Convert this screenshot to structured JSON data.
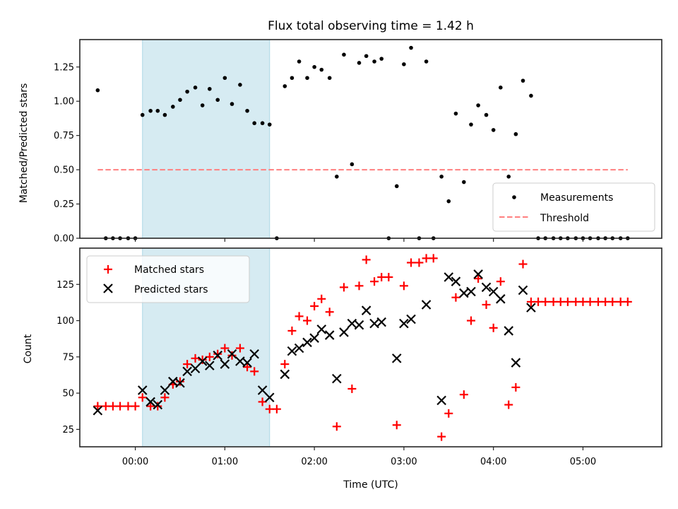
{
  "chart_data": [
    {
      "type": "scatter",
      "panel": "top",
      "title": "Flux total observing time = 1.42 h",
      "xlabel": "",
      "ylabel": "Matched/Predicted stars",
      "xlim": [
        -0.62,
        5.88
      ],
      "ylim": [
        0.0,
        1.45
      ],
      "yticks": [
        0.0,
        0.25,
        0.5,
        0.75,
        1.0,
        1.25
      ],
      "ytick_labels": [
        "0.00",
        "0.25",
        "0.50",
        "0.75",
        "1.00",
        "1.25"
      ],
      "xticks": [
        0,
        1,
        2,
        3,
        4,
        5
      ],
      "grid": false,
      "legend": {
        "placement": "lower-right",
        "entries": [
          "Measurements",
          "Threshold"
        ]
      },
      "shaded_interval_hours": [
        0.08,
        1.5
      ],
      "shaded_color": "#add8e6",
      "threshold": {
        "name": "Threshold",
        "value": 0.5,
        "x_range": [
          -0.42,
          5.5
        ],
        "color": "#ff7f7f",
        "style": "dashed"
      },
      "series": [
        {
          "name": "Measurements",
          "color": "#000000",
          "marker": "dot",
          "x": [
            -0.42,
            -0.33,
            -0.25,
            -0.17,
            -0.08,
            0.0,
            0.08,
            0.17,
            0.25,
            0.33,
            0.42,
            0.5,
            0.58,
            0.67,
            0.75,
            0.83,
            0.92,
            1.0,
            1.08,
            1.17,
            1.25,
            1.33,
            1.42,
            1.5,
            1.58,
            1.67,
            1.75,
            1.83,
            1.92,
            2.0,
            2.08,
            2.17,
            2.25,
            2.33,
            2.42,
            2.5,
            2.58,
            2.67,
            2.75,
            2.83,
            2.92,
            3.0,
            3.08,
            3.17,
            3.25,
            3.33,
            3.42,
            3.5,
            3.58,
            3.67,
            3.75,
            3.83,
            3.92,
            4.0,
            4.08,
            4.17,
            4.25,
            4.33,
            4.42,
            4.5,
            4.58,
            4.67,
            4.75,
            4.83,
            4.92,
            5.0,
            5.08,
            5.17,
            5.25,
            5.33,
            5.42,
            5.5
          ],
          "y": [
            1.08,
            0,
            0,
            0,
            0,
            0,
            0.9,
            0.93,
            0.93,
            0.9,
            0.96,
            1.01,
            1.07,
            1.1,
            0.97,
            1.09,
            1.01,
            1.17,
            0.98,
            1.12,
            0.93,
            0.84,
            0.84,
            0.83,
            0,
            1.11,
            1.17,
            1.29,
            1.17,
            1.25,
            1.23,
            1.17,
            0.45,
            1.34,
            0.54,
            1.28,
            1.33,
            1.29,
            1.31,
            0,
            0.38,
            1.27,
            1.39,
            0,
            1.29,
            0,
            0.45,
            0.27,
            0.91,
            0.41,
            0.83,
            0.97,
            0.9,
            0.79,
            1.1,
            0.45,
            0.76,
            1.15,
            1.04,
            0,
            0,
            0,
            0,
            0,
            0,
            0,
            0,
            0,
            0,
            0,
            0,
            0
          ]
        }
      ]
    },
    {
      "type": "scatter",
      "panel": "bottom",
      "title": "",
      "xlabel": "Time (UTC)",
      "ylabel": "Count",
      "xlim": [
        -0.62,
        5.88
      ],
      "ylim": [
        13,
        150
      ],
      "yticks": [
        25,
        50,
        75,
        100,
        125
      ],
      "ytick_labels": [
        "25",
        "50",
        "75",
        "100",
        "125"
      ],
      "xticks": [
        0,
        1,
        2,
        3,
        4,
        5
      ],
      "xtick_labels": [
        "00:00",
        "01:00",
        "02:00",
        "03:00",
        "04:00",
        "05:00"
      ],
      "grid": false,
      "legend": {
        "placement": "upper-left",
        "entries": [
          "Matched stars",
          "Predicted stars"
        ]
      },
      "shaded_interval_hours": [
        0.08,
        1.5
      ],
      "shaded_color": "#add8e6",
      "series": [
        {
          "name": "Matched stars",
          "color": "#ff0000",
          "marker": "plus",
          "x": [
            -0.42,
            -0.33,
            -0.25,
            -0.17,
            -0.08,
            0.0,
            0.08,
            0.17,
            0.25,
            0.33,
            0.42,
            0.5,
            0.58,
            0.67,
            0.75,
            0.83,
            0.92,
            1.0,
            1.08,
            1.17,
            1.25,
            1.33,
            1.42,
            1.5,
            1.58,
            1.67,
            1.75,
            1.83,
            1.92,
            2.0,
            2.08,
            2.17,
            2.25,
            2.33,
            2.42,
            2.5,
            2.58,
            2.67,
            2.75,
            2.83,
            2.92,
            3.0,
            3.08,
            3.17,
            3.25,
            3.33,
            3.42,
            3.5,
            3.58,
            3.67,
            3.75,
            3.83,
            3.92,
            4.0,
            4.08,
            4.17,
            4.25,
            4.33,
            4.42,
            4.5,
            4.58,
            4.67,
            4.75,
            4.83,
            4.92,
            5.0,
            5.08,
            5.17,
            5.25,
            5.33,
            5.42,
            5.5
          ],
          "y": [
            41,
            41,
            41,
            41,
            41,
            41,
            47,
            41,
            41,
            47,
            56,
            58,
            70,
            74,
            73,
            75,
            77,
            81,
            76,
            81,
            68,
            65,
            44,
            39,
            39,
            70,
            93,
            103,
            100,
            110,
            115,
            106,
            27,
            123,
            53,
            124,
            142,
            127,
            130,
            130,
            28,
            124,
            140,
            140,
            143,
            143,
            20,
            36,
            116,
            49,
            100,
            129,
            111,
            95,
            127,
            42,
            54,
            139,
            113,
            113,
            113,
            113,
            113,
            113,
            113,
            113,
            113,
            113,
            113,
            113,
            113,
            113
          ]
        },
        {
          "name": "Predicted stars",
          "color": "#000000",
          "marker": "x",
          "x": [
            -0.42,
            0.08,
            0.17,
            0.25,
            0.33,
            0.42,
            0.5,
            0.58,
            0.67,
            0.75,
            0.83,
            0.92,
            1.0,
            1.08,
            1.17,
            1.25,
            1.33,
            1.42,
            1.5,
            1.67,
            1.75,
            1.83,
            1.92,
            2.0,
            2.08,
            2.17,
            2.25,
            2.33,
            2.42,
            2.5,
            2.58,
            2.67,
            2.75,
            2.92,
            3.0,
            3.08,
            3.25,
            3.42,
            3.5,
            3.58,
            3.67,
            3.75,
            3.83,
            3.92,
            4.0,
            4.08,
            4.17,
            4.25,
            4.33,
            4.42
          ],
          "y": [
            38,
            52,
            44,
            42,
            52,
            58,
            57,
            65,
            67,
            72,
            69,
            76,
            70,
            77,
            72,
            71,
            77,
            52,
            47,
            63,
            79,
            81,
            85,
            88,
            94,
            90,
            60,
            92,
            98,
            97,
            107,
            98,
            99,
            74,
            98,
            101,
            111,
            45,
            130,
            127,
            119,
            120,
            132,
            123,
            120,
            115,
            93,
            71,
            121,
            109
          ]
        }
      ]
    }
  ]
}
